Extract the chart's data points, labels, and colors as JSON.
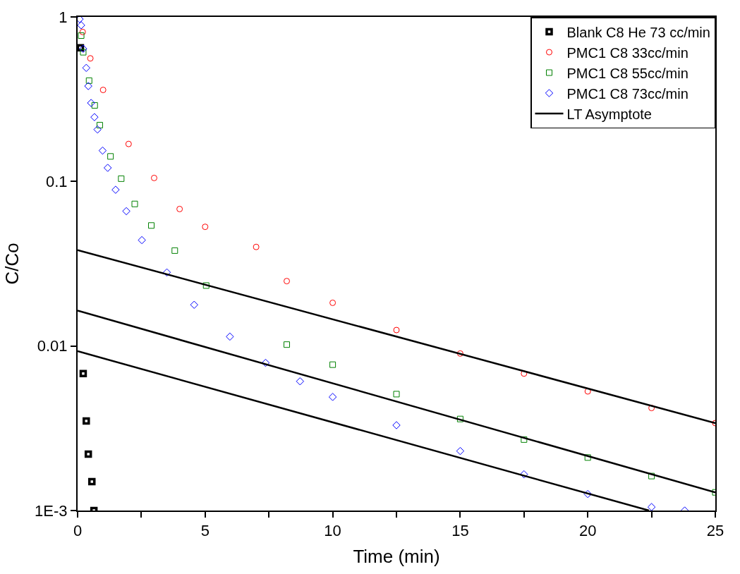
{
  "chart_data": {
    "type": "scatter",
    "xlabel": "Time (min)",
    "ylabel": "C/Co",
    "log": "y",
    "xlim": [
      0,
      25
    ],
    "xticks": [
      0,
      {
        "value": 2.5,
        "label": null
      },
      5,
      {
        "value": 7.5,
        "label": null
      },
      10,
      {
        "value": 12.5,
        "label": null
      },
      15,
      {
        "value": 17.5,
        "label": null
      },
      20,
      {
        "value": 22.5,
        "label": null
      },
      25
    ],
    "ylim": [
      0.001,
      1
    ],
    "yticks": [
      {
        "value": 0.001,
        "label": "1E-3"
      },
      0.01,
      0.1,
      1
    ],
    "legend": "top right",
    "series": [
      {
        "name": "Blank C8 He 73 cc/min",
        "marker": "square",
        "color": "#000000",
        "x": [
          0.11,
          0.22,
          0.34,
          0.42,
          0.56,
          0.64
        ],
        "values": [
          0.65,
          0.0068,
          0.0035,
          0.0022,
          0.0015,
          0.001
        ]
      },
      {
        "name": "PMC1 C8 33cc/min",
        "marker": "circle",
        "color": "#ff0000",
        "x": [
          0.2,
          0.5,
          1,
          2,
          3,
          4,
          5,
          7,
          8.2,
          10,
          12.5,
          15,
          17.5,
          20,
          22.5,
          25
        ],
        "values": [
          0.81,
          0.56,
          0.36,
          0.169,
          0.105,
          0.068,
          0.053,
          0.04,
          0.0248,
          0.0183,
          0.0125,
          0.009,
          0.0068,
          0.0053,
          0.0042,
          0.0034
        ]
      },
      {
        "name": "PMC1 C8 55cc/min",
        "marker": "square",
        "color": "#008000",
        "x": [
          0.14,
          0.22,
          0.45,
          0.67,
          0.87,
          1.29,
          1.71,
          2.24,
          2.89,
          3.81,
          5.04,
          8.2,
          10,
          12.5,
          15,
          17.5,
          20,
          22.5,
          25
        ],
        "values": [
          0.77,
          0.61,
          0.41,
          0.29,
          0.22,
          0.142,
          0.104,
          0.073,
          0.054,
          0.038,
          0.0233,
          0.0102,
          0.0077,
          0.0051,
          0.0036,
          0.0027,
          0.0021,
          0.00162,
          0.00129
        ]
      },
      {
        "name": "PMC1 C8 73cc/min",
        "marker": "diamond",
        "color": "#0000ff",
        "x": [
          0.08,
          0.14,
          0.22,
          0.34,
          0.42,
          0.53,
          0.66,
          0.78,
          0.98,
          1.18,
          1.49,
          1.91,
          2.52,
          3.5,
          4.57,
          5.97,
          7.37,
          8.72,
          10,
          12.5,
          15,
          17.5,
          20,
          22.5,
          23.8
        ],
        "values": [
          0.97,
          0.89,
          0.64,
          0.49,
          0.38,
          0.3,
          0.246,
          0.207,
          0.154,
          0.121,
          0.089,
          0.066,
          0.044,
          0.028,
          0.0178,
          0.0114,
          0.0079,
          0.0061,
          0.0049,
          0.0033,
          0.0023,
          0.00166,
          0.00126,
          0.00105,
          0.001
        ]
      },
      {
        "name": "LT Asymptote",
        "type": "line",
        "marker": "none",
        "color": "#000000",
        "x": [
          0,
          25
        ],
        "values": [
          0.0383,
          0.0034
        ]
      },
      {
        "type": "line",
        "marker": "none",
        "color": "#000000",
        "x": [
          0,
          25
        ],
        "values": [
          0.0164,
          0.00129
        ]
      },
      {
        "type": "line",
        "marker": "none",
        "color": "#000000",
        "x": [
          0,
          22.4
        ],
        "values": [
          0.0093,
          0.001
        ]
      }
    ]
  }
}
